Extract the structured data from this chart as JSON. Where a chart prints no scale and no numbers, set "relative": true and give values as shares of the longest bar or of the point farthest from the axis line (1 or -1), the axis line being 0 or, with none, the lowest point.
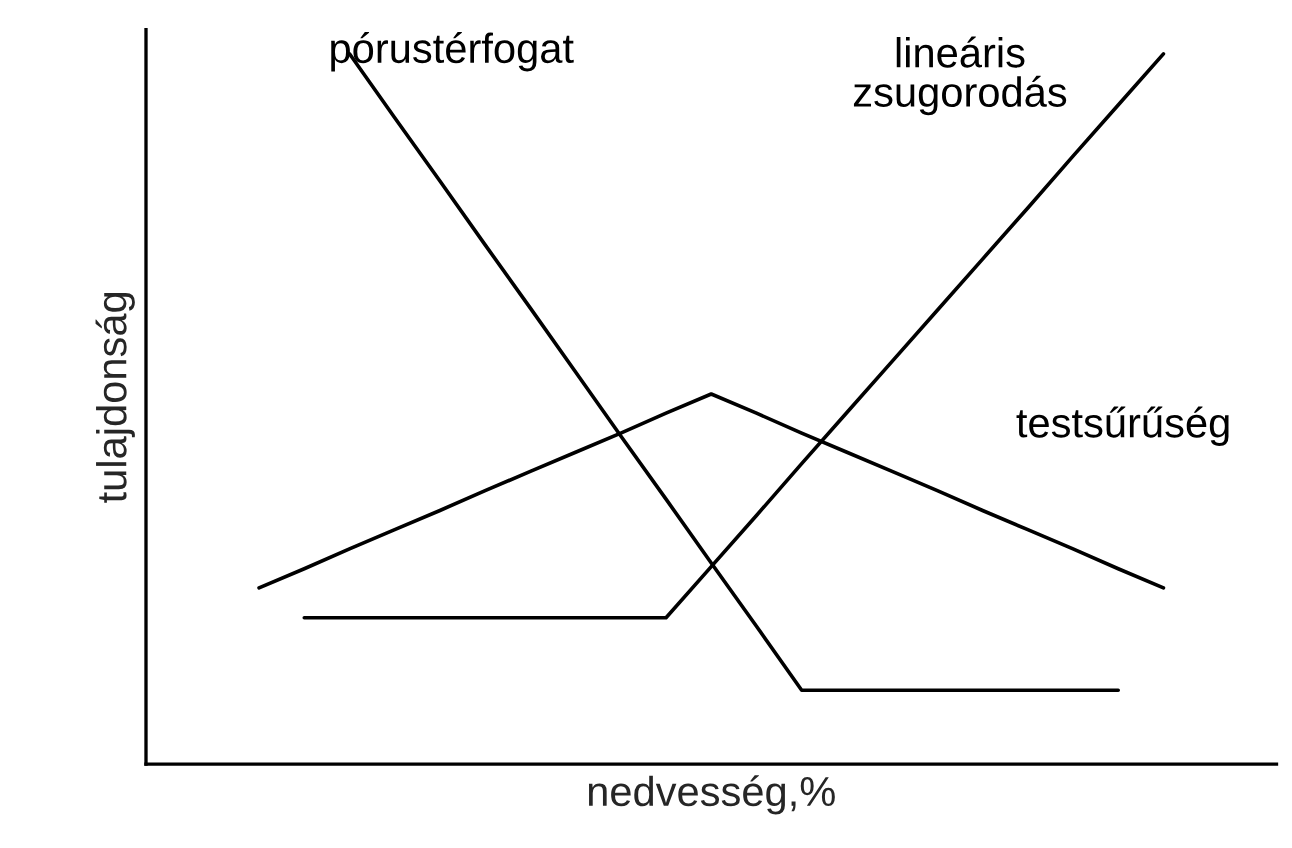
{
  "chart_data": {
    "type": "line",
    "relative": true,
    "xlabel": "nedvesség,%",
    "ylabel": "tulajdonság",
    "legend": false,
    "marker": "none",
    "line_style": "solid",
    "categories": [
      null,
      null,
      null,
      null,
      null,
      null,
      null,
      null,
      null,
      null,
      null,
      null,
      null,
      null,
      null,
      null,
      null,
      null,
      null,
      null,
      null
    ],
    "series": [
      {
        "name": "pórustérfogat",
        "color": "#000000",
        "values": [
          null,
          null,
          1,
          0.91,
          0.821,
          0.731,
          0.642,
          0.552,
          0.462,
          0.373,
          0.283,
          0.194,
          0.104,
          0.104,
          0.104,
          0.104,
          0.104,
          0.104,
          0.104,
          0.104,
          null
        ]
      },
      {
        "name": "lineáris\nzsugorodás",
        "color": "#000000",
        "values": [
          null,
          0.206,
          0.206,
          0.206,
          0.206,
          0.206,
          0.206,
          0.206,
          0.206,
          0.206,
          0.278,
          0.35,
          0.423,
          0.495,
          0.567,
          0.639,
          0.711,
          0.783,
          0.856,
          0.928,
          1
        ]
      },
      {
        "name": "testsűrűség",
        "color": "#000000",
        "values": [
          0.248,
          0.275,
          0.303,
          0.33,
          0.357,
          0.385,
          0.412,
          0.439,
          0.466,
          0.494,
          0.521,
          0.494,
          0.466,
          0.439,
          0.412,
          0.385,
          0.357,
          0.33,
          0.303,
          0.275,
          0.248
        ]
      }
    ]
  }
}
